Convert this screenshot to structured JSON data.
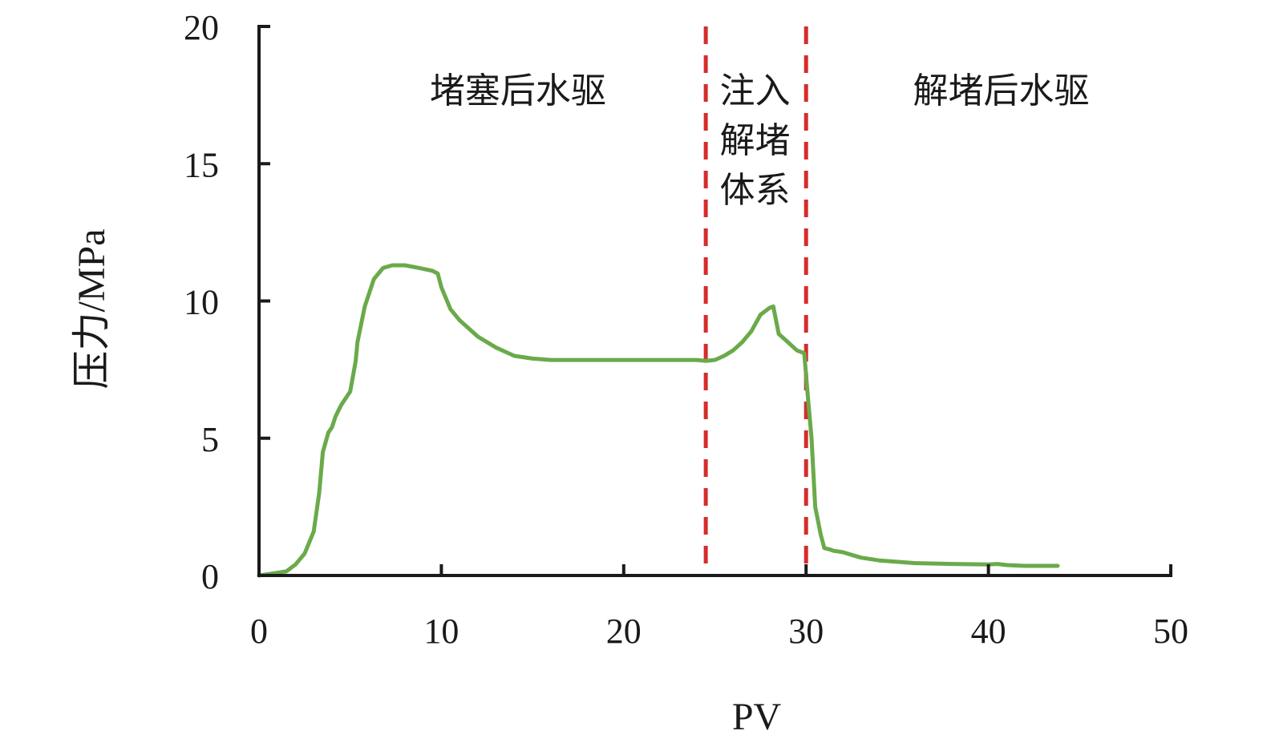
{
  "chart_data": {
    "type": "line",
    "title": "",
    "xlabel": "PV",
    "ylabel": "压力/MPa",
    "xlim": [
      0,
      50
    ],
    "ylim": [
      0,
      20
    ],
    "x_ticks": [
      0,
      10,
      20,
      30,
      40,
      50
    ],
    "y_ticks": [
      0,
      5,
      10,
      15,
      20
    ],
    "grid": false,
    "legend": "none",
    "series": [
      {
        "color": "#6aaa4a",
        "x": [
          0,
          0.5,
          1.0,
          1.5,
          2.0,
          2.5,
          3.0,
          3.3,
          3.5,
          3.8,
          4.0,
          4.2,
          4.5,
          5.0,
          5.3,
          5.4,
          5.8,
          6.3,
          6.8,
          7.3,
          8.0,
          8.8,
          9.5,
          9.8,
          10.0,
          10.5,
          11.0,
          12.0,
          13.0,
          14.0,
          15.0,
          16.0,
          17.0,
          18.0,
          19.0,
          20.0,
          21.0,
          22.0,
          23.0,
          24.0,
          24.5,
          25.0,
          25.5,
          26.0,
          26.5,
          27.0,
          27.5,
          28.0,
          28.2,
          28.5,
          29.0,
          29.5,
          29.9,
          30.1,
          30.3,
          30.5,
          30.8,
          31.0,
          31.3,
          31.5,
          32.0,
          32.5,
          33.0,
          34.0,
          36.0,
          38.0,
          40.0,
          40.5,
          41.0,
          42.0,
          43.0,
          43.8
        ],
        "y": [
          0.0,
          0.05,
          0.1,
          0.15,
          0.4,
          0.8,
          1.6,
          3.0,
          4.5,
          5.2,
          5.4,
          5.8,
          6.2,
          6.7,
          7.8,
          8.5,
          9.8,
          10.8,
          11.2,
          11.3,
          11.3,
          11.2,
          11.1,
          11.0,
          10.5,
          9.7,
          9.3,
          8.7,
          8.3,
          8.0,
          7.9,
          7.85,
          7.85,
          7.85,
          7.85,
          7.85,
          7.85,
          7.85,
          7.85,
          7.85,
          7.82,
          7.85,
          8.0,
          8.2,
          8.5,
          8.9,
          9.5,
          9.75,
          9.8,
          8.8,
          8.5,
          8.2,
          8.1,
          6.5,
          5.0,
          2.5,
          1.5,
          1.0,
          0.95,
          0.9,
          0.85,
          0.75,
          0.65,
          0.55,
          0.45,
          0.42,
          0.4,
          0.42,
          0.38,
          0.35,
          0.35,
          0.35
        ]
      }
    ],
    "vlines": [
      {
        "x": 24.5,
        "color": "#d62c2c"
      },
      {
        "x": 30.0,
        "color": "#d62c2c"
      }
    ],
    "annotations": [
      {
        "lines": [
          "堵塞后水驱"
        ],
        "x": 14.2,
        "y": 17.0
      },
      {
        "lines": [
          "注入",
          "解堵",
          "体系"
        ],
        "x": 27.2,
        "y": 17.0
      },
      {
        "lines": [
          "解堵后水驱"
        ],
        "x": 40.7,
        "y": 17.0
      }
    ]
  }
}
